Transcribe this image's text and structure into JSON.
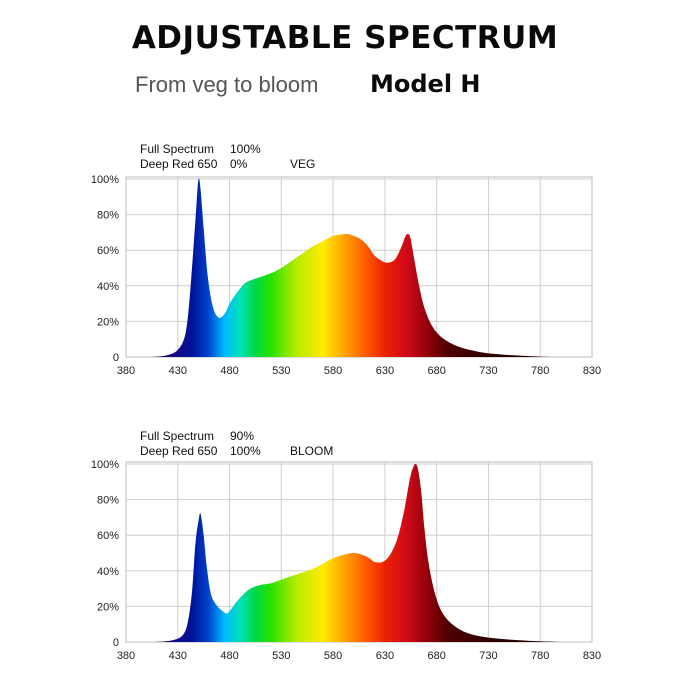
{
  "header": {
    "title": "ADJUSTABLE SPECTRUM",
    "subtitle": "From veg to bloom",
    "model": "Model H"
  },
  "chart_data": [
    {
      "type": "area",
      "mode": "VEG",
      "settings": [
        {
          "label": "Full Spectrum",
          "value": "100%"
        },
        {
          "label": "Deep Red 650",
          "value": "0%"
        }
      ],
      "xlim": [
        380,
        830
      ],
      "ylim": [
        0,
        100
      ],
      "x_ticks": [
        "380",
        "430",
        "480",
        "530",
        "580",
        "630",
        "680",
        "730",
        "780",
        "830"
      ],
      "y_ticks": [
        "0",
        "20%",
        "40%",
        "60%",
        "80%",
        "100%"
      ],
      "grid": true,
      "series": [
        {
          "x": [
            405,
            420,
            430,
            437,
            441,
            445,
            448,
            450,
            452,
            455,
            459,
            464,
            470,
            476,
            480,
            487,
            494,
            500,
            510,
            520,
            530,
            540,
            550,
            560,
            570,
            580,
            590,
            595,
            600,
            607,
            614,
            620,
            627,
            633,
            640,
            646,
            650,
            653,
            655,
            658,
            663,
            668,
            675,
            685,
            700,
            720,
            740,
            760,
            790
          ],
          "y": [
            0,
            1,
            4,
            12,
            30,
            60,
            85,
            100,
            94,
            72,
            45,
            28,
            22,
            25,
            30,
            36,
            41,
            43,
            45,
            47,
            50,
            54,
            58,
            62,
            65,
            68,
            69,
            69,
            68,
            66,
            62,
            57,
            54,
            53,
            55,
            62,
            68,
            69,
            66,
            56,
            40,
            28,
            18,
            11,
            6,
            3,
            1.5,
            0.8,
            0
          ]
        }
      ]
    },
    {
      "type": "area",
      "mode": "BLOOM",
      "settings": [
        {
          "label": "Full Spectrum",
          "value": "90%"
        },
        {
          "label": "Deep Red 650",
          "value": "100%"
        }
      ],
      "xlim": [
        380,
        830
      ],
      "ylim": [
        0,
        100
      ],
      "x_ticks": [
        "380",
        "430",
        "480",
        "530",
        "580",
        "630",
        "680",
        "730",
        "780",
        "830"
      ],
      "y_ticks": [
        "0",
        "20%",
        "40%",
        "60%",
        "80%",
        "100%"
      ],
      "grid": true,
      "series": [
        {
          "x": [
            408,
            425,
            435,
            440,
            444,
            447,
            450,
            452,
            455,
            458,
            462,
            467,
            472,
            477,
            481,
            486,
            492,
            500,
            510,
            520,
            530,
            540,
            550,
            560,
            570,
            580,
            590,
            600,
            608,
            615,
            620,
            628,
            635,
            642,
            648,
            652,
            655,
            658,
            660,
            662,
            665,
            668,
            672,
            678,
            685,
            695,
            710,
            730,
            760,
            800
          ],
          "y": [
            0,
            1,
            4,
            12,
            30,
            55,
            68,
            72,
            60,
            42,
            27,
            21,
            18,
            16,
            18,
            22,
            26,
            30,
            32,
            33,
            35,
            37,
            39,
            41,
            44,
            47,
            49,
            50,
            49,
            47,
            45,
            45,
            49,
            58,
            72,
            85,
            94,
            99,
            100,
            97,
            85,
            65,
            45,
            28,
            17,
            10,
            5,
            2.5,
            1,
            0
          ]
        }
      ]
    }
  ]
}
